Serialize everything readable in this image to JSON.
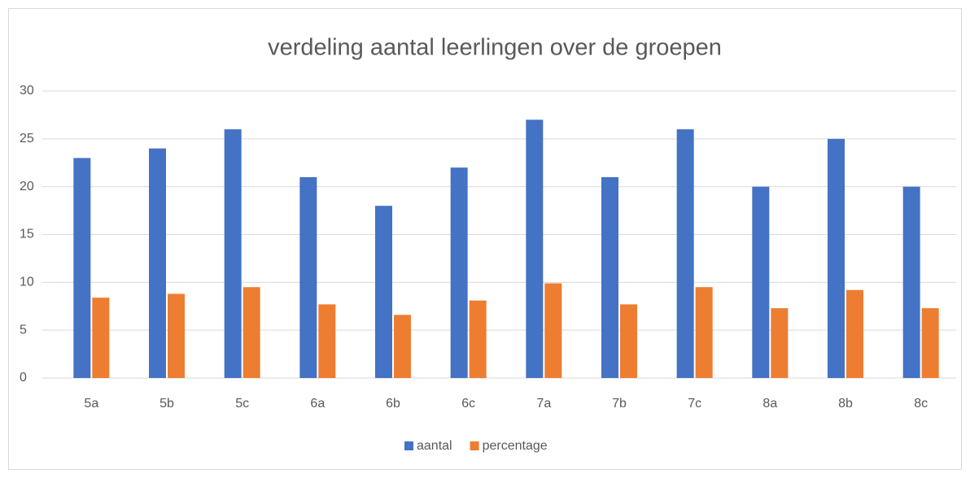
{
  "chart_data": {
    "type": "bar",
    "title": "verdeling aantal leerlingen over de groepen",
    "categories": [
      "5a",
      "5b",
      "5c",
      "6a",
      "6b",
      "6c",
      "7a",
      "7b",
      "7c",
      "8a",
      "8b",
      "8c"
    ],
    "series": [
      {
        "name": "aantal",
        "color": "#4472c4",
        "values": [
          23,
          24,
          26,
          21,
          18,
          22,
          27,
          21,
          26,
          20,
          25,
          20
        ]
      },
      {
        "name": "percentage",
        "color": "#ed7d31",
        "values": [
          8.4,
          8.8,
          9.5,
          7.7,
          6.6,
          8.1,
          9.9,
          7.7,
          9.5,
          7.3,
          9.2,
          7.3
        ]
      }
    ],
    "ylim": [
      0,
      30
    ],
    "yticks": [
      0,
      5,
      10,
      15,
      20,
      25,
      30
    ],
    "grid": true,
    "legend": "bottom"
  }
}
